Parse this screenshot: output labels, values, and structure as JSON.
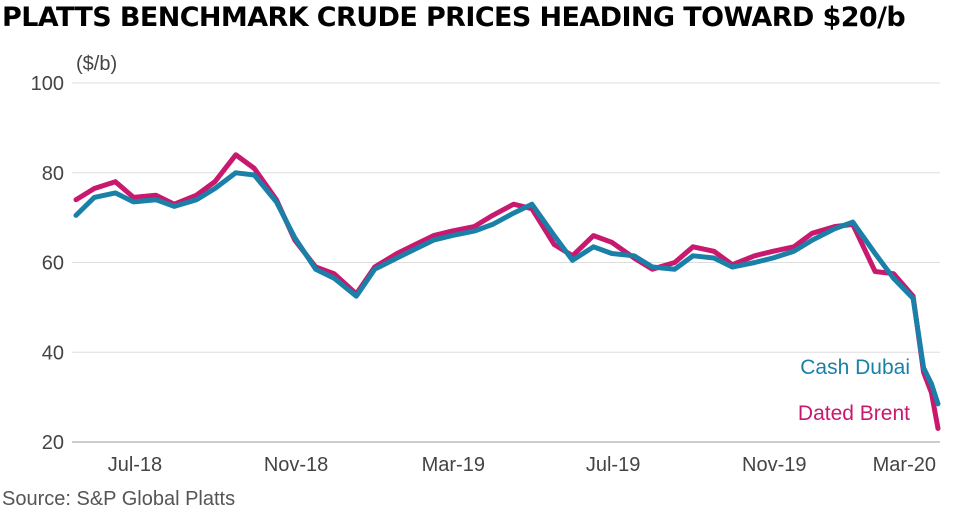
{
  "title": "PLATTS BENCHMARK CRUDE PRICES HEADING TOWARD $20/b",
  "source": "Source: S&P Global Platts",
  "chart_data": {
    "type": "line",
    "title": "PLATTS BENCHMARK CRUDE PRICES HEADING TOWARD $20/b",
    "ylabel": "($/b)",
    "ylim": [
      20,
      100
    ],
    "yticks": [
      20,
      40,
      60,
      80,
      100
    ],
    "xticks": [
      "Jul-18",
      "Nov-18",
      "Mar-19",
      "Jul-19",
      "Nov-19",
      "Mar-20"
    ],
    "xlim": [
      "2018-06-01",
      "2020-03-20"
    ],
    "grid": "horizontal",
    "legend": "inline labels at right end of series",
    "x": [
      "2018-06-01",
      "2018-06-15",
      "2018-07-01",
      "2018-07-15",
      "2018-08-01",
      "2018-08-15",
      "2018-09-01",
      "2018-09-15",
      "2018-10-01",
      "2018-10-15",
      "2018-11-01",
      "2018-11-15",
      "2018-12-01",
      "2018-12-15",
      "2019-01-01",
      "2019-01-15",
      "2019-02-01",
      "2019-02-15",
      "2019-03-01",
      "2019-03-15",
      "2019-04-01",
      "2019-04-15",
      "2019-05-01",
      "2019-05-15",
      "2019-06-01",
      "2019-06-15",
      "2019-07-01",
      "2019-07-15",
      "2019-08-01",
      "2019-08-15",
      "2019-09-01",
      "2019-09-15",
      "2019-10-01",
      "2019-10-15",
      "2019-11-01",
      "2019-11-15",
      "2019-12-01",
      "2019-12-15",
      "2020-01-01",
      "2020-01-15",
      "2020-02-01",
      "2020-02-15",
      "2020-03-01",
      "2020-03-09",
      "2020-03-15",
      "2020-03-20"
    ],
    "series": [
      {
        "name": "Cash Dubai",
        "color": "#1a80a8",
        "values": [
          70.5,
          74.5,
          75.5,
          73.5,
          74.0,
          72.5,
          74.0,
          76.5,
          80.0,
          79.5,
          73.5,
          65.5,
          58.5,
          56.5,
          52.5,
          58.5,
          61.0,
          63.0,
          65.0,
          66.0,
          67.0,
          68.5,
          71.0,
          73.0,
          66.0,
          60.5,
          63.5,
          62.0,
          61.5,
          59.0,
          58.5,
          61.5,
          61.0,
          59.0,
          60.0,
          61.0,
          62.5,
          65.0,
          67.5,
          69.0,
          62.0,
          56.5,
          52.0,
          36.5,
          33.0,
          28.5
        ]
      },
      {
        "name": "Dated Brent",
        "color": "#c8196e",
        "values": [
          74.0,
          76.5,
          78.0,
          74.5,
          75.0,
          73.0,
          75.0,
          78.0,
          84.0,
          81.0,
          74.0,
          65.0,
          59.0,
          57.5,
          53.0,
          59.0,
          62.0,
          64.0,
          66.0,
          67.0,
          68.0,
          70.5,
          73.0,
          72.0,
          64.0,
          61.5,
          66.0,
          64.5,
          61.0,
          58.5,
          60.0,
          63.5,
          62.5,
          59.5,
          61.5,
          62.5,
          63.5,
          66.5,
          68.0,
          68.5,
          58.0,
          57.5,
          52.5,
          35.5,
          31.0,
          23.0
        ]
      }
    ]
  }
}
